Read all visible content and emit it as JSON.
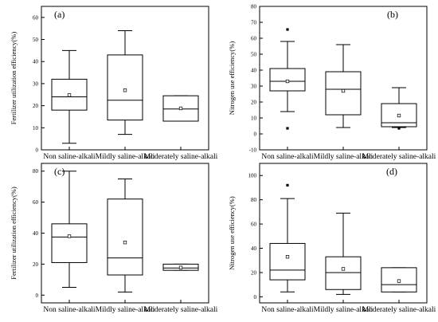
{
  "chart_data": [
    {
      "type": "box",
      "panel_label": "(a)",
      "ylabel": "Fertilizer utilization efficiency(%)",
      "ylim": [
        0,
        65
      ],
      "yticks": [
        0,
        10,
        20,
        30,
        40,
        50,
        60
      ],
      "categories": [
        "Non saline-alkali",
        "Mildly saline-alkali",
        "Moderately saline-alkali"
      ],
      "boxes": [
        {
          "whisker_low": 3,
          "q1": 18,
          "median": 24,
          "q3": 32,
          "whisker_high": 45,
          "mean": 24.8,
          "outliers": []
        },
        {
          "whisker_low": 7,
          "q1": 13.5,
          "median": 22.5,
          "q3": 43,
          "whisker_high": 54,
          "mean": 27,
          "outliers": []
        },
        {
          "whisker_low": 13,
          "q1": 13,
          "median": 18.5,
          "q3": 24.5,
          "whisker_high": 24.5,
          "mean": 18.8,
          "outliers": []
        }
      ]
    },
    {
      "type": "box",
      "panel_label": "(b)",
      "ylabel": "Nitrogen use efficiency(%)",
      "ylim": [
        -10,
        80
      ],
      "yticks": [
        -10,
        0,
        10,
        20,
        30,
        40,
        50,
        60,
        70,
        80
      ],
      "categories": [
        "Non saline-alkali",
        "Mildly saline-alkali",
        "Moderately saline-alkali"
      ],
      "boxes": [
        {
          "whisker_low": 14,
          "q1": 27,
          "median": 33,
          "q3": 41,
          "whisker_high": 58,
          "mean": 33,
          "outliers": [
            3.5,
            65.5
          ]
        },
        {
          "whisker_low": 4,
          "q1": 12,
          "median": 28,
          "q3": 39,
          "whisker_high": 56,
          "mean": 27,
          "outliers": []
        },
        {
          "whisker_low": 4,
          "q1": 4.5,
          "median": 7,
          "q3": 19,
          "whisker_high": 29,
          "mean": 11.5,
          "outliers": [
            3.5
          ]
        }
      ]
    },
    {
      "type": "box",
      "panel_label": "(c)",
      "ylabel": "Fertilizer utilization efficiency(%)",
      "ylim": [
        -5,
        85
      ],
      "yticks": [
        0,
        20,
        40,
        60,
        80
      ],
      "categories": [
        "Non saline-alkali",
        "Mildly saline-alkali",
        "Moderately saline-alkali"
      ],
      "boxes": [
        {
          "whisker_low": 5,
          "q1": 21,
          "median": 37.5,
          "q3": 46,
          "whisker_high": 80,
          "mean": 38,
          "outliers": []
        },
        {
          "whisker_low": 2,
          "q1": 13,
          "median": 24,
          "q3": 62,
          "whisker_high": 75,
          "mean": 34,
          "outliers": []
        },
        {
          "whisker_low": 16,
          "q1": 16,
          "median": 17.5,
          "q3": 20,
          "whisker_high": 20,
          "mean": 17.8,
          "outliers": []
        }
      ]
    },
    {
      "type": "box",
      "panel_label": "(d)",
      "ylabel": "Nitrogen use efficiency(%)",
      "ylim": [
        -5,
        110
      ],
      "yticks": [
        0,
        20,
        40,
        60,
        80,
        100
      ],
      "categories": [
        "Non saline-alkali",
        "Mildly saline-alkali",
        "Moderately saline-alkali"
      ],
      "boxes": [
        {
          "whisker_low": 4,
          "q1": 14,
          "median": 22,
          "q3": 44,
          "whisker_high": 81,
          "mean": 33,
          "outliers": [
            92
          ]
        },
        {
          "whisker_low": 2,
          "q1": 6,
          "median": 20,
          "q3": 33,
          "whisker_high": 69,
          "mean": 23,
          "outliers": []
        },
        {
          "whisker_low": 4,
          "q1": 4,
          "median": 10,
          "q3": 24,
          "whisker_high": 24,
          "mean": 13,
          "outliers": []
        }
      ]
    }
  ]
}
